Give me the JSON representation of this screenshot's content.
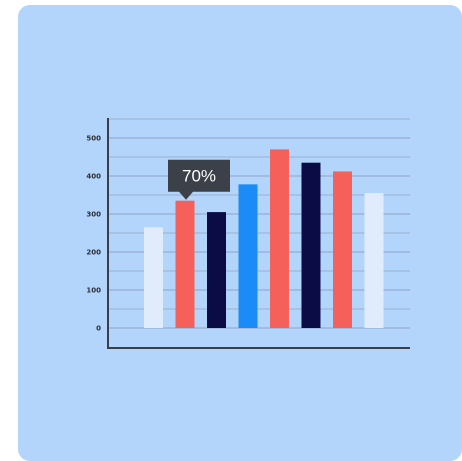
{
  "colors": {
    "background": "#b3d5fb",
    "gridline": "#8fa4c4",
    "axis": "#3a3f47",
    "tooltip": "#3b4049"
  },
  "chart_data": {
    "type": "bar",
    "title": "",
    "xlabel": "",
    "ylabel": "",
    "ylim": [
      0,
      550
    ],
    "y_ticks": [
      0,
      100,
      200,
      300,
      400,
      500
    ],
    "y_tick_labels": [
      "0",
      "100",
      "200",
      "300",
      "400",
      "500"
    ],
    "grid": true,
    "values": [
      265,
      335,
      305,
      378,
      470,
      435,
      412,
      355
    ],
    "bar_colors": [
      "#e0ecfb",
      "#f5605a",
      "#0b0b45",
      "#1a8bf7",
      "#f5605a",
      "#0b0b45",
      "#f5605a",
      "#e0ecfb"
    ],
    "annotation": {
      "text": "70%",
      "bar_index": 1
    }
  }
}
